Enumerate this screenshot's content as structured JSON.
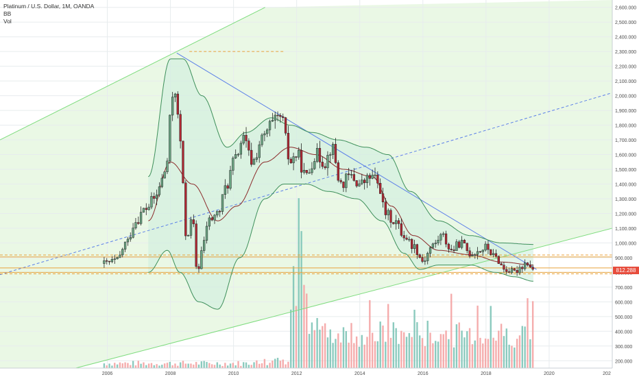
{
  "legend": {
    "symbol": "Platinum / U.S. Dollar, 1M, OANDA",
    "indicator1": "BB",
    "indicator2": "Vol"
  },
  "last_price_label": "812.288",
  "colors": {
    "up": "#6ba583",
    "down": "#b22833",
    "bb_band": "#3d8f5a",
    "bb_basis": "#8b2a2a",
    "channel": "#7fdc7f",
    "trendline": "#5b7fe8",
    "hline": "#e8a23a",
    "vol_up": "#7ec4b7",
    "vol_down": "#f4a3a3",
    "price_tag": "#e74c3c"
  },
  "chart_data": {
    "type": "candlestick",
    "title": "Platinum / U.S. Dollar, 1M, OANDA",
    "y_ticks": [
      "2,600.000",
      "2,500.000",
      "2,400.000",
      "2,300.000",
      "2,200.000",
      "2,100.000",
      "2,000.000",
      "1,900.000",
      "1,800.000",
      "1,700.000",
      "1,600.000",
      "1,500.000",
      "1,400.000",
      "1,300.000",
      "1,200.000",
      "1,100.000",
      "1,000.000",
      "900.000",
      "800.000",
      "700.000",
      "600.000",
      "500.000",
      "400.000",
      "300.000",
      "200.000"
    ],
    "x_ticks": [
      "2006",
      "2008",
      "2010",
      "2012",
      "2014",
      "2016",
      "2018",
      "2020",
      "202"
    ],
    "ylim": [
      150,
      2650
    ],
    "xlim": [
      2002.6,
      2022.0
    ],
    "price_anchors": [
      [
        2005.9,
        860
      ],
      [
        2006.3,
        880
      ],
      [
        2006.6,
        1000
      ],
      [
        2006.9,
        1150
      ],
      [
        2007.2,
        1230
      ],
      [
        2007.5,
        1300
      ],
      [
        2007.75,
        1430
      ],
      [
        2007.9,
        1560
      ],
      [
        2008.05,
        2000
      ],
      [
        2008.15,
        2050
      ],
      [
        2008.3,
        1700
      ],
      [
        2008.5,
        1050
      ],
      [
        2008.7,
        1150
      ],
      [
        2008.85,
        800
      ],
      [
        2009.0,
        950
      ],
      [
        2009.2,
        1150
      ],
      [
        2009.5,
        1200
      ],
      [
        2009.8,
        1400
      ],
      [
        2010.0,
        1550
      ],
      [
        2010.3,
        1700
      ],
      [
        2010.6,
        1550
      ],
      [
        2010.9,
        1700
      ],
      [
        2011.2,
        1800
      ],
      [
        2011.5,
        1850
      ],
      [
        2011.8,
        1550
      ],
      [
        2012.0,
        1600
      ],
      [
        2012.3,
        1450
      ],
      [
        2012.6,
        1600
      ],
      [
        2012.9,
        1550
      ],
      [
        2013.1,
        1650
      ],
      [
        2013.4,
        1400
      ],
      [
        2013.7,
        1450
      ],
      [
        2014.0,
        1400
      ],
      [
        2014.4,
        1450
      ],
      [
        2014.6,
        1400
      ],
      [
        2014.8,
        1200
      ],
      [
        2015.1,
        1150
      ],
      [
        2015.4,
        1050
      ],
      [
        2015.7,
        980
      ],
      [
        2016.0,
        880
      ],
      [
        2016.3,
        980
      ],
      [
        2016.6,
        1050
      ],
      [
        2016.9,
        950
      ],
      [
        2017.2,
        1000
      ],
      [
        2017.5,
        930
      ],
      [
        2017.8,
        950
      ],
      [
        2018.0,
        970
      ],
      [
        2018.3,
        900
      ],
      [
        2018.6,
        820
      ],
      [
        2018.9,
        800
      ],
      [
        2019.1,
        840
      ],
      [
        2019.3,
        870
      ],
      [
        2019.5,
        812
      ]
    ],
    "bb_upper_anchors": [
      [
        2007.3,
        1450
      ],
      [
        2008.0,
        2250
      ],
      [
        2008.4,
        2250
      ],
      [
        2009.0,
        2000
      ],
      [
        2009.8,
        1650
      ],
      [
        2010.4,
        1750
      ],
      [
        2011.2,
        1850
      ],
      [
        2011.8,
        1800
      ],
      [
        2012.5,
        1750
      ],
      [
        2013.3,
        1700
      ],
      [
        2014.2,
        1650
      ],
      [
        2014.9,
        1600
      ],
      [
        2015.6,
        1350
      ],
      [
        2016.5,
        1150
      ],
      [
        2017.5,
        1050
      ],
      [
        2018.5,
        1000
      ],
      [
        2019.5,
        990
      ]
    ],
    "bb_lower_anchors": [
      [
        2007.3,
        800
      ],
      [
        2007.9,
        950
      ],
      [
        2008.3,
        800
      ],
      [
        2008.9,
        600
      ],
      [
        2009.5,
        550
      ],
      [
        2010.2,
        900
      ],
      [
        2011.0,
        1300
      ],
      [
        2011.6,
        1400
      ],
      [
        2012.3,
        1400
      ],
      [
        2013.0,
        1350
      ],
      [
        2013.9,
        1300
      ],
      [
        2014.7,
        1150
      ],
      [
        2015.4,
        930
      ],
      [
        2015.9,
        820
      ],
      [
        2016.5,
        850
      ],
      [
        2017.5,
        850
      ],
      [
        2018.3,
        800
      ],
      [
        2018.9,
        770
      ],
      [
        2019.5,
        740
      ]
    ],
    "bb_basis_anchors": [
      [
        2007.3,
        1150
      ],
      [
        2008.0,
        1550
      ],
      [
        2008.7,
        1400
      ],
      [
        2009.5,
        1150
      ],
      [
        2010.1,
        1250
      ],
      [
        2011.0,
        1550
      ],
      [
        2011.8,
        1650
      ],
      [
        2012.6,
        1600
      ],
      [
        2013.5,
        1500
      ],
      [
        2014.4,
        1450
      ],
      [
        2015.0,
        1250
      ],
      [
        2015.7,
        1050
      ],
      [
        2016.5,
        950
      ],
      [
        2017.5,
        920
      ],
      [
        2018.5,
        870
      ],
      [
        2019.5,
        850
      ]
    ],
    "channel_lines": [
      {
        "from": [
          2002.6,
          1700
        ],
        "to": [
          2011.0,
          2600
        ]
      },
      {
        "from": [
          2002.6,
          785
        ],
        "to": [
          2022.0,
          2020
        ]
      },
      {
        "from": [
          2005.0,
          150
        ],
        "to": [
          2022.0,
          1100
        ]
      }
    ],
    "trendline": {
      "from": [
        2008.2,
        2290
      ],
      "to": [
        2019.6,
        820
      ]
    },
    "horizontal_lines": [
      {
        "y": 918,
        "style": "dashed"
      },
      {
        "y": 905,
        "style": "solid"
      },
      {
        "y": 830,
        "style": "solid"
      },
      {
        "y": 800,
        "style": "solid"
      },
      {
        "y": 790,
        "style": "dashed"
      },
      {
        "y": 2300,
        "style": "dashed",
        "x_from": 2008.6,
        "x_to": 2011.6
      }
    ],
    "volume_note": "Volume bars in lower panel; spike ~2012 then sustained activity to 2019"
  }
}
